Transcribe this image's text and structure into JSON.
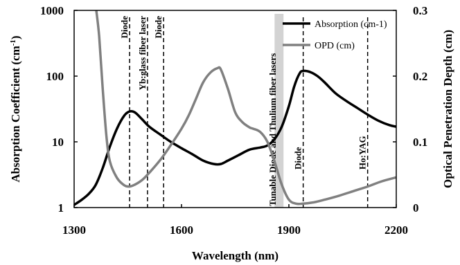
{
  "chart_data": {
    "type": "line",
    "xlabel": "Wavelength (nm)",
    "ylabel_left": "Absorption Coefficient (cm-1)",
    "ylabel_right": "Optical Penetration Depth (cm)",
    "xlim": [
      1300,
      2200
    ],
    "ylim_left": [
      1,
      1000
    ],
    "ylim_left_scale": "log",
    "ylim_right": [
      0,
      0.3
    ],
    "x_ticks": [
      "1300",
      "1600",
      "1900",
      "2200"
    ],
    "y_left_ticks": [
      "1",
      "10",
      "100",
      "1000"
    ],
    "y_right_ticks": [
      "0",
      "0.1",
      "0.2",
      "0.3"
    ],
    "legend": {
      "position": "top-right",
      "entries": [
        "Absorption (cm-1)",
        "OPD (cm)"
      ]
    },
    "series": [
      {
        "name": "Absorption (cm-1)",
        "axis": "left",
        "color": "#000000",
        "points": [
          [
            1300,
            1.1
          ],
          [
            1320,
            1.3
          ],
          [
            1340,
            1.6
          ],
          [
            1360,
            2.2
          ],
          [
            1380,
            4.0
          ],
          [
            1400,
            8.5
          ],
          [
            1420,
            16
          ],
          [
            1440,
            25
          ],
          [
            1455,
            29
          ],
          [
            1470,
            28
          ],
          [
            1490,
            22
          ],
          [
            1510,
            17
          ],
          [
            1540,
            13
          ],
          [
            1570,
            10
          ],
          [
            1600,
            8
          ],
          [
            1630,
            6.5
          ],
          [
            1660,
            5.2
          ],
          [
            1690,
            4.6
          ],
          [
            1710,
            4.6
          ],
          [
            1730,
            5.2
          ],
          [
            1760,
            6.3
          ],
          [
            1790,
            7.6
          ],
          [
            1820,
            8.2
          ],
          [
            1840,
            8.8
          ],
          [
            1860,
            11
          ],
          [
            1880,
            17
          ],
          [
            1900,
            35
          ],
          [
            1915,
            70
          ],
          [
            1930,
            110
          ],
          [
            1940,
            120
          ],
          [
            1960,
            115
          ],
          [
            1980,
            100
          ],
          [
            2000,
            80
          ],
          [
            2030,
            55
          ],
          [
            2060,
            42
          ],
          [
            2090,
            33
          ],
          [
            2120,
            26
          ],
          [
            2150,
            21
          ],
          [
            2180,
            18
          ],
          [
            2200,
            17
          ]
        ]
      },
      {
        "name": "OPD (cm)",
        "axis": "right",
        "color": "#808080",
        "points": [
          [
            1362,
            0.3
          ],
          [
            1370,
            0.26
          ],
          [
            1380,
            0.18
          ],
          [
            1390,
            0.11
          ],
          [
            1400,
            0.07
          ],
          [
            1420,
            0.045
          ],
          [
            1440,
            0.034
          ],
          [
            1455,
            0.032
          ],
          [
            1470,
            0.035
          ],
          [
            1490,
            0.042
          ],
          [
            1510,
            0.053
          ],
          [
            1540,
            0.072
          ],
          [
            1570,
            0.095
          ],
          [
            1600,
            0.12
          ],
          [
            1620,
            0.14
          ],
          [
            1640,
            0.165
          ],
          [
            1660,
            0.19
          ],
          [
            1680,
            0.205
          ],
          [
            1700,
            0.212
          ],
          [
            1710,
            0.21
          ],
          [
            1730,
            0.18
          ],
          [
            1750,
            0.145
          ],
          [
            1770,
            0.13
          ],
          [
            1790,
            0.122
          ],
          [
            1800,
            0.12
          ],
          [
            1820,
            0.115
          ],
          [
            1840,
            0.1
          ],
          [
            1860,
            0.07
          ],
          [
            1880,
            0.035
          ],
          [
            1900,
            0.012
          ],
          [
            1920,
            0.006
          ],
          [
            1940,
            0.006
          ],
          [
            1970,
            0.008
          ],
          [
            2000,
            0.012
          ],
          [
            2040,
            0.018
          ],
          [
            2080,
            0.025
          ],
          [
            2120,
            0.032
          ],
          [
            2160,
            0.04
          ],
          [
            2200,
            0.046
          ]
        ]
      }
    ],
    "vertical_markers": [
      {
        "x": 1455,
        "label": "Diode"
      },
      {
        "x": 1505,
        "label": "Yb:glass fiber laser"
      },
      {
        "x": 1550,
        "label": "Diode"
      },
      {
        "x": 1940,
        "label": "Diode"
      },
      {
        "x": 2120,
        "label": "Ho:YAG"
      }
    ],
    "band": {
      "x_start": 1860,
      "x_end": 1885,
      "color": "#d3d3d3",
      "label": "Tunable Diode and Thulium fiber lasers"
    }
  }
}
